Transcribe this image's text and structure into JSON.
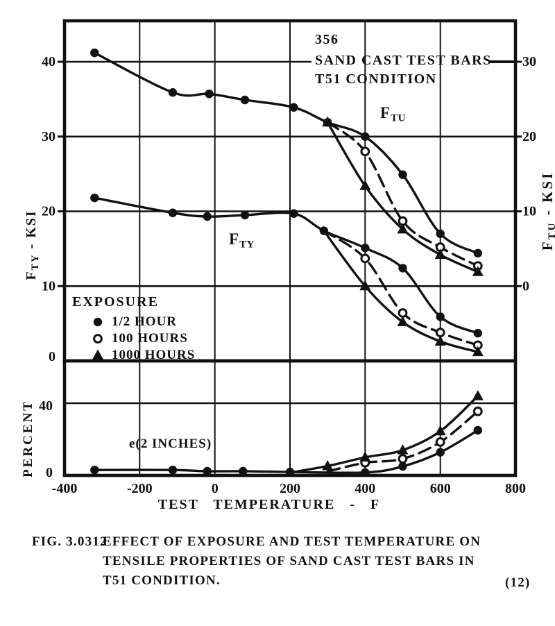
{
  "colors": {
    "ink": "#111111",
    "paper": "#ffffff"
  },
  "annotations": {
    "alloy": "356",
    "material": "SAND CAST TEST BARS",
    "condition": "T51 CONDITION",
    "ftu": {
      "main": "F",
      "sub": "TU"
    },
    "fty": {
      "main": "F",
      "sub": "TY"
    },
    "elongation": "e(2 INCHES)"
  },
  "legend": {
    "title": "EXPOSURE",
    "items": [
      {
        "marker": "filled-circle",
        "label": "1/2 HOUR"
      },
      {
        "marker": "open-circle",
        "label": "100 HOURS"
      },
      {
        "marker": "filled-triangle",
        "label": "1000 HOURS"
      }
    ]
  },
  "axes": {
    "x": {
      "title": "TEST TEMPERATURE - F",
      "ticks": [
        "-400",
        "-200",
        "0",
        "200",
        "400",
        "600",
        "800"
      ],
      "range": [
        -400,
        800
      ]
    },
    "top_left": {
      "main": "F",
      "sub": "TY",
      "rest": " - KSI",
      "ticks": [
        "40",
        "30",
        "20",
        "10",
        "0"
      ]
    },
    "top_right": {
      "main": "F",
      "sub": "TU",
      "rest": " - KSI",
      "ticks": [
        "30",
        "20",
        "10",
        "0"
      ],
      "offset_from_left_axis": -10
    },
    "bottom_left": {
      "title": "PERCENT",
      "ticks": [
        "40",
        "0"
      ]
    }
  },
  "figure": {
    "fig_label": "FIG. 3.0312",
    "caption_lines": [
      "EFFECT OF EXPOSURE AND TEST TEMPERATURE ON",
      "TENSILE PROPERTIES OF SAND CAST TEST BARS IN",
      "T51 CONDITION."
    ],
    "reference": "(12)"
  },
  "chart_data": {
    "type": "line",
    "x_unit": "deg F",
    "x_range": [
      -400,
      800
    ],
    "left_axis_range_ksi": [
      0,
      45.5
    ],
    "right_axis_range_ksi": [
      -10,
      35.5
    ],
    "percent_axis_range": [
      0,
      63
    ],
    "grid": true,
    "panels": [
      {
        "id": "tensile",
        "series": [
          {
            "name": "FTU 1/2 HOUR",
            "axis": "right",
            "marker": "filled-circle",
            "line": "solid",
            "marker_first": true,
            "x": [
              -320,
              -112,
              -15,
              80,
              210,
              300,
              400,
              500,
              600,
              700
            ],
            "y": [
              31.2,
              25.9,
              25.7,
              24.9,
              23.9,
              21.9,
              20.0,
              14.9,
              7.0,
              4.4
            ]
          },
          {
            "name": "FTU 100 HOURS",
            "axis": "right",
            "marker": "open-circle",
            "line": "dashed",
            "marker_first": false,
            "x": [
              300,
              400,
              500,
              600,
              700
            ],
            "y": [
              21.9,
              18.0,
              8.7,
              5.2,
              2.7
            ]
          },
          {
            "name": "FTU 1000 HOURS",
            "axis": "right",
            "marker": "filled-triangle",
            "line": "solid",
            "marker_first": true,
            "x": [
              300,
              400,
              500,
              600,
              700
            ],
            "y": [
              21.9,
              13.4,
              7.6,
              4.2,
              1.9
            ]
          },
          {
            "name": "FTY 1/2 HOUR",
            "axis": "left",
            "marker": "filled-circle",
            "line": "solid",
            "marker_first": true,
            "x": [
              -320,
              -112,
              -20,
              80,
              210,
              290,
              400,
              500,
              600,
              700
            ],
            "y": [
              21.8,
              19.8,
              19.3,
              19.5,
              19.7,
              17.4,
              15.1,
              12.4,
              5.9,
              3.7
            ]
          },
          {
            "name": "FTY 100 HOURS",
            "axis": "left",
            "marker": "open-circle",
            "line": "dashed",
            "marker_first": false,
            "x": [
              290,
              400,
              500,
              600,
              700
            ],
            "y": [
              17.4,
              13.7,
              6.4,
              3.8,
              2.1
            ]
          },
          {
            "name": "FTY 1000 HOURS",
            "axis": "left",
            "marker": "filled-triangle",
            "line": "solid",
            "marker_first": false,
            "x": [
              290,
              400,
              500,
              600,
              700
            ],
            "y": [
              17.4,
              10.0,
              5.2,
              2.6,
              1.2
            ]
          }
        ]
      },
      {
        "id": "elongation",
        "series": [
          {
            "name": "e(2 IN.) 1/2 HOUR",
            "axis": "percent",
            "marker": "filled-circle",
            "line": "solid",
            "marker_first": true,
            "x": [
              -320,
              -112,
              -20,
              75,
              200,
              400,
              500,
              600,
              700
            ],
            "y": [
              3.0,
              3.0,
              2.3,
              2.3,
              1.9,
              1.6,
              5.0,
              12.8,
              25.0
            ]
          },
          {
            "name": "e(2 IN.) 100 HOURS",
            "axis": "percent",
            "marker": "open-circle",
            "line": "dashed",
            "marker_first": false,
            "x": [
              300,
              400,
              500,
              600,
              700
            ],
            "y": [
              2.2,
              7.0,
              9.2,
              18.5,
              35.5
            ]
          },
          {
            "name": "e(2 IN.) 1000 HOURS",
            "axis": "percent",
            "marker": "filled-triangle",
            "line": "solid",
            "marker_first": false,
            "x": [
              210,
              300,
              400,
              500,
              600,
              700
            ],
            "y": [
              1.9,
              5.2,
              10.0,
              14.0,
              24.5,
              44.0
            ]
          }
        ]
      }
    ]
  }
}
